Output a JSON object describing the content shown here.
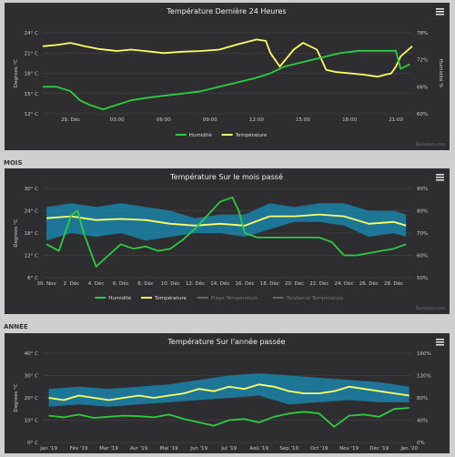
{
  "sections": {
    "month": "MOIS",
    "year": "ANNÉE"
  },
  "credit": "Domoticz.com",
  "menu_icon": "hamburger-menu-icon",
  "colors": {
    "humidity": "#2ecc40",
    "temperature": "#ffff66",
    "band": "#1a8fb8",
    "panel": "#2e2e30",
    "grid": "#4a4a4c",
    "text": "#cccccc"
  },
  "chart_data": [
    {
      "type": "line",
      "title": "Température Dernière 24 Heures",
      "ylabel_left": "Degrees °C",
      "ylabel_right": "Humidité %",
      "yticks_left": [
        "12° C",
        "15° C",
        "18° C",
        "21° C",
        "24° C"
      ],
      "ylim_left": [
        12,
        24
      ],
      "yticks_right": [
        "60%",
        "66%",
        "72%",
        "78%"
      ],
      "ylim_right": [
        60,
        78
      ],
      "xticks": [
        "29. Déc",
        "03:00",
        "06:00",
        "09:00",
        "12:00",
        "15:00",
        "18:00",
        "21:00"
      ],
      "xlim": [
        -0.6,
        7.35
      ],
      "legend": [
        "Humidité",
        "Température"
      ],
      "series": [
        {
          "name": "Température",
          "axis": "left",
          "x": [
            -0.6,
            -0.3,
            0,
            0.3,
            0.6,
            1,
            1.3,
            1.6,
            2,
            2.4,
            2.8,
            3.2,
            3.6,
            4,
            4.2,
            4.3,
            4.5,
            4.8,
            5,
            5.3,
            5.5,
            5.7,
            6,
            6.3,
            6.6,
            6.9,
            7,
            7.1,
            7.35
          ],
          "values": [
            22,
            22.2,
            22.5,
            22,
            21.6,
            21.3,
            21.5,
            21.3,
            21,
            21.2,
            21.3,
            21.5,
            22.3,
            23,
            22.8,
            21,
            19,
            21.5,
            22.5,
            21.5,
            18.5,
            18.2,
            18,
            17.8,
            17.5,
            18,
            19,
            20.5,
            22
          ]
        },
        {
          "name": "Humidité",
          "axis": "right",
          "x": [
            -0.6,
            -0.3,
            0,
            0.2,
            0.4,
            0.7,
            1,
            1.3,
            1.6,
            2,
            2.4,
            2.8,
            3.2,
            3.6,
            4,
            4.3,
            4.6,
            5,
            5.4,
            5.8,
            6.2,
            6.6,
            7,
            7.1,
            7.3
          ],
          "values": [
            66,
            66,
            65,
            63,
            62,
            61,
            62,
            63,
            63.5,
            64,
            64.5,
            65,
            66,
            67,
            68,
            69,
            70.5,
            71.5,
            72.5,
            73.5,
            74,
            74,
            74,
            70,
            71
          ]
        }
      ]
    },
    {
      "type": "line",
      "title": "Température Sur le mois passé",
      "ylabel_left": "Degrees °C",
      "yticks_left": [
        "6° C",
        "12° C",
        "18° C",
        "24° C",
        "30° C"
      ],
      "ylim_left": [
        6,
        30
      ],
      "yticks_right": [
        "50%",
        "60%",
        "70%",
        "80%",
        "90%"
      ],
      "ylim_right": [
        50,
        90
      ],
      "xticks": [
        "30. Nov",
        "2. Déc",
        "4. Déc",
        "6. Déc",
        "8. Déc",
        "10. Déc",
        "12. Déc",
        "14. Déc",
        "16. Déc",
        "18. Déc",
        "20. Déc",
        "22. Déc",
        "24. Déc",
        "26. Déc",
        "28. Déc"
      ],
      "xlim": [
        -0.3,
        29.5
      ],
      "legend": [
        "Humidité",
        "Température",
        "Plage Température",
        "Tendance Température"
      ],
      "series": [
        {
          "name": "Température",
          "axis": "left",
          "x": [
            0,
            2,
            4,
            6,
            8,
            10,
            12,
            14,
            16,
            18,
            20,
            22,
            24,
            26,
            28,
            29
          ],
          "values": [
            22,
            22.5,
            21.5,
            21.8,
            21.5,
            20.5,
            20,
            20.5,
            20,
            22.5,
            22.5,
            23,
            22.5,
            20.5,
            21,
            20
          ]
        },
        {
          "name": "Humidité",
          "axis": "right",
          "x": [
            0,
            1,
            2,
            2.5,
            3,
            4,
            5,
            6,
            7,
            8,
            9,
            10,
            11,
            12,
            13,
            14,
            15,
            15.5,
            16,
            17,
            18,
            19,
            20,
            21,
            22,
            23,
            24,
            25,
            26,
            27,
            28,
            29
          ],
          "values": [
            65,
            62,
            78,
            80,
            70,
            55,
            60,
            65,
            63,
            64,
            62,
            63,
            67,
            72,
            78,
            84,
            86,
            80,
            70,
            68,
            68,
            68,
            68,
            68,
            68,
            66,
            60,
            60,
            61,
            62,
            63,
            65
          ]
        },
        {
          "name": "Plage Température",
          "axis": "left",
          "type": "range",
          "x": [
            0,
            2,
            4,
            6,
            8,
            10,
            12,
            14,
            16,
            18,
            20,
            22,
            24,
            26,
            28,
            29
          ],
          "low": [
            16,
            18,
            17,
            18,
            16,
            17,
            18,
            18,
            17,
            19,
            21,
            21,
            20,
            17,
            18,
            17
          ],
          "high": [
            25,
            26,
            25,
            26,
            25,
            24,
            22,
            23,
            23,
            26,
            25,
            26,
            26,
            24,
            24,
            23
          ]
        }
      ]
    },
    {
      "type": "line",
      "title": "Température Sur l'année passée",
      "ylabel_left": "Degrees °C",
      "yticks_left": [
        "0° C",
        "10° C",
        "20° C",
        "30° C",
        "40° C"
      ],
      "ylim_left": [
        0,
        40
      ],
      "yticks_right": [
        "0%",
        "40%",
        "80%",
        "120%",
        "160%"
      ],
      "ylim_right": [
        0,
        160
      ],
      "xticks": [
        "Jan '19",
        "Fév '19",
        "Mar '19",
        "Avr '19",
        "Mai '19",
        "Jun '19",
        "Jul '19",
        "Aoû '19",
        "Sep '19",
        "Oct '19",
        "Nov '19",
        "Déc '19",
        "Jan '20"
      ],
      "xlim": [
        -0.2,
        12.1
      ],
      "series": [
        {
          "name": "Température",
          "axis": "left",
          "x": [
            0,
            0.5,
            1,
            1.5,
            2,
            2.5,
            3,
            3.5,
            4,
            4.5,
            5,
            5.5,
            6,
            6.5,
            7,
            7.5,
            8,
            8.5,
            9,
            9.5,
            10,
            10.5,
            11,
            11.5,
            12
          ],
          "values": [
            20,
            19,
            21,
            20,
            19,
            20,
            21,
            20,
            21,
            22,
            24,
            23,
            25,
            24,
            26,
            25,
            23,
            22,
            22,
            23,
            25,
            24,
            23,
            22,
            21
          ]
        },
        {
          "name": "Humidité",
          "axis": "right",
          "x": [
            0,
            0.5,
            1,
            1.5,
            2,
            2.5,
            3,
            3.5,
            4,
            4.5,
            5,
            5.5,
            6,
            6.5,
            7,
            7.5,
            8,
            8.5,
            9,
            9.5,
            10,
            10.5,
            11,
            11.5,
            12
          ],
          "values": [
            48,
            45,
            50,
            44,
            46,
            48,
            47,
            45,
            50,
            42,
            36,
            30,
            40,
            42,
            36,
            46,
            52,
            55,
            52,
            28,
            48,
            50,
            46,
            60,
            62
          ]
        },
        {
          "name": "Plage Température",
          "axis": "left",
          "type": "range",
          "x": [
            0,
            1,
            2,
            3,
            4,
            5,
            6,
            7,
            8,
            9,
            10,
            11,
            12
          ],
          "low": [
            16,
            17,
            16,
            17,
            18,
            19,
            20,
            21,
            17,
            18,
            19,
            18,
            18
          ],
          "high": [
            24,
            25,
            24,
            25,
            26,
            28,
            30,
            31,
            30,
            29,
            28,
            27,
            25
          ]
        }
      ]
    }
  ]
}
